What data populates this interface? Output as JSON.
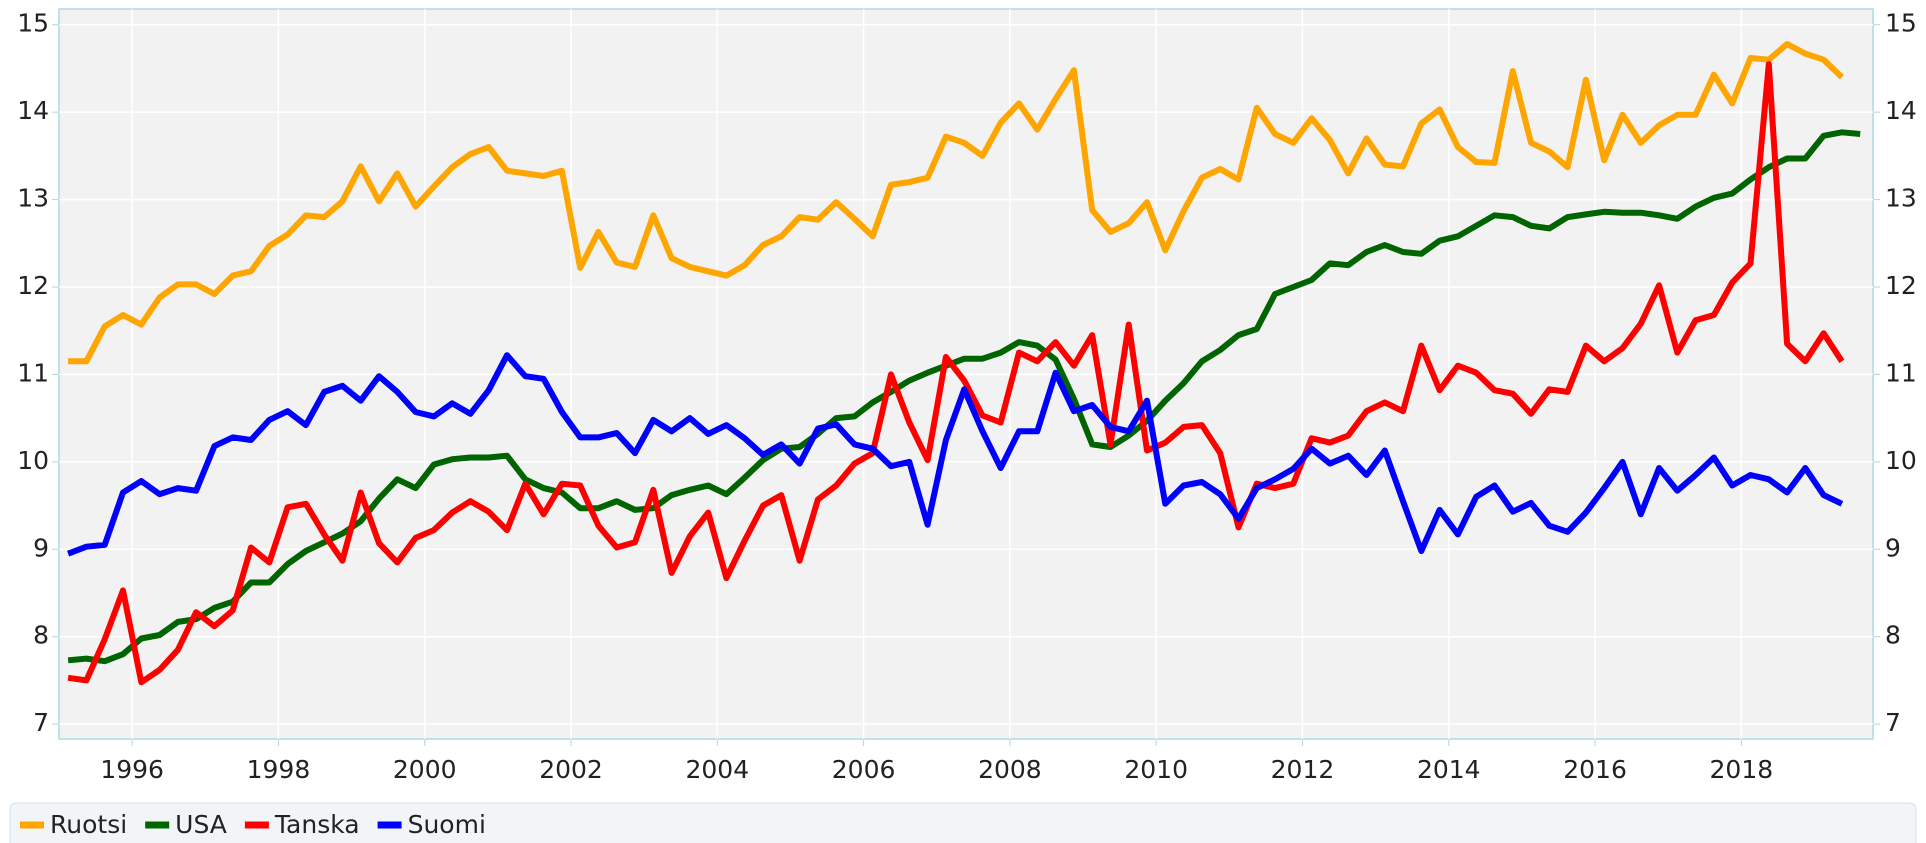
{
  "chart_data": {
    "type": "line",
    "x": [
      1995.125,
      1995.375,
      1995.625,
      1995.875,
      1996.125,
      1996.375,
      1996.625,
      1996.875,
      1997.125,
      1997.375,
      1997.625,
      1997.875,
      1998.125,
      1998.375,
      1998.625,
      1998.875,
      1999.125,
      1999.375,
      1999.625,
      1999.875,
      2000.125,
      2000.375,
      2000.625,
      2000.875,
      2001.125,
      2001.375,
      2001.625,
      2001.875,
      2002.125,
      2002.375,
      2002.625,
      2002.875,
      2003.125,
      2003.375,
      2003.625,
      2003.875,
      2004.125,
      2004.375,
      2004.625,
      2004.875,
      2005.125,
      2005.375,
      2005.625,
      2005.875,
      2006.125,
      2006.375,
      2006.625,
      2006.875,
      2007.125,
      2007.375,
      2007.625,
      2007.875,
      2008.125,
      2008.375,
      2008.625,
      2008.875,
      2009.125,
      2009.375,
      2009.625,
      2009.875,
      2010.125,
      2010.375,
      2010.625,
      2010.875,
      2011.125,
      2011.375,
      2011.625,
      2011.875,
      2012.125,
      2012.375,
      2012.625,
      2012.875,
      2013.125,
      2013.375,
      2013.625,
      2013.875,
      2014.125,
      2014.375,
      2014.625,
      2014.875,
      2015.125,
      2015.375,
      2015.625,
      2015.875,
      2016.125,
      2016.375,
      2016.625,
      2016.875,
      2017.125,
      2017.375,
      2017.625,
      2017.875,
      2018.125,
      2018.375,
      2018.625,
      2018.875,
      2019.125,
      2019.375,
      2019.625
    ],
    "series": [
      {
        "name": "Ruotsi",
        "color": "#ffa500",
        "values": [
          11.15,
          11.15,
          11.55,
          11.68,
          11.57,
          11.88,
          12.03,
          12.03,
          11.92,
          12.13,
          12.18,
          12.47,
          12.6,
          12.82,
          12.8,
          12.98,
          13.38,
          12.98,
          13.3,
          12.92,
          13.15,
          13.37,
          13.52,
          13.6,
          13.33,
          13.3,
          13.27,
          13.33,
          12.22,
          12.63,
          12.28,
          12.23,
          12.82,
          12.33,
          12.23,
          12.18,
          12.13,
          12.25,
          12.48,
          12.58,
          12.8,
          12.77,
          12.97,
          12.78,
          12.58,
          13.17,
          13.2,
          13.25,
          13.72,
          13.65,
          13.5,
          13.88,
          14.1,
          13.8,
          14.15,
          14.48,
          12.88,
          12.63,
          12.73,
          12.97,
          12.42,
          12.87,
          13.25,
          13.35,
          13.23,
          14.05,
          13.75,
          13.65,
          13.93,
          13.68,
          13.3,
          13.7,
          13.4,
          13.38,
          13.87,
          14.03,
          13.6,
          13.43,
          13.42,
          14.47,
          13.65,
          13.55,
          13.37,
          14.37,
          13.45,
          13.97,
          13.65,
          13.85,
          13.97,
          13.97,
          14.43,
          14.1,
          14.62,
          14.6,
          14.78,
          14.67,
          14.6,
          14.4,
          null
        ]
      },
      {
        "name": "USA",
        "color": "#006400",
        "values": [
          7.73,
          7.75,
          7.72,
          7.8,
          7.98,
          8.02,
          8.17,
          8.2,
          8.33,
          8.4,
          8.62,
          8.62,
          8.83,
          8.98,
          9.08,
          9.18,
          9.32,
          9.58,
          9.8,
          9.7,
          9.97,
          10.03,
          10.05,
          10.05,
          10.07,
          9.8,
          9.7,
          9.65,
          9.47,
          9.47,
          9.55,
          9.45,
          9.47,
          9.62,
          9.68,
          9.73,
          9.63,
          9.82,
          10.02,
          10.15,
          10.17,
          10.32,
          10.5,
          10.52,
          10.68,
          10.8,
          10.93,
          11.02,
          11.1,
          11.18,
          11.18,
          11.25,
          11.37,
          11.33,
          11.17,
          10.72,
          10.2,
          10.17,
          10.3,
          10.47,
          10.7,
          10.9,
          11.15,
          11.28,
          11.45,
          11.52,
          11.92,
          12.0,
          12.08,
          12.27,
          12.25,
          12.4,
          12.48,
          12.4,
          12.38,
          12.53,
          12.58,
          12.7,
          12.82,
          12.8,
          12.7,
          12.67,
          12.8,
          12.83,
          12.86,
          12.85,
          12.85,
          12.82,
          12.78,
          12.92,
          13.02,
          13.07,
          13.23,
          13.37,
          13.47,
          13.47,
          13.73,
          13.77,
          13.75
        ]
      },
      {
        "name": "Tanska",
        "color": "#ff0000",
        "values": [
          7.53,
          7.5,
          7.97,
          8.53,
          7.48,
          7.62,
          7.85,
          8.28,
          8.12,
          8.3,
          9.02,
          8.85,
          9.48,
          9.52,
          9.17,
          8.87,
          9.65,
          9.07,
          8.85,
          9.13,
          9.22,
          9.42,
          9.55,
          9.43,
          9.22,
          9.75,
          9.4,
          9.75,
          9.73,
          9.27,
          9.02,
          9.08,
          9.68,
          8.73,
          9.15,
          9.42,
          8.67,
          9.1,
          9.5,
          9.62,
          8.87,
          9.57,
          9.73,
          9.98,
          10.1,
          11.0,
          10.45,
          10.02,
          11.2,
          10.93,
          10.53,
          10.45,
          11.25,
          11.15,
          11.37,
          11.1,
          11.45,
          10.2,
          11.57,
          10.13,
          10.22,
          10.4,
          10.42,
          10.1,
          9.25,
          9.75,
          9.7,
          9.75,
          10.27,
          10.22,
          10.3,
          10.58,
          10.68,
          10.58,
          11.33,
          10.82,
          11.1,
          11.02,
          10.82,
          10.78,
          10.55,
          10.83,
          10.8,
          11.33,
          11.15,
          11.3,
          11.58,
          12.02,
          11.25,
          11.62,
          11.68,
          12.05,
          12.27,
          14.55,
          11.35,
          11.15,
          11.47,
          11.15,
          null
        ]
      },
      {
        "name": "Suomi",
        "color": "#0000ff",
        "values": [
          8.95,
          9.03,
          9.05,
          9.65,
          9.78,
          9.63,
          9.7,
          9.67,
          10.18,
          10.28,
          10.25,
          10.48,
          10.58,
          10.42,
          10.8,
          10.87,
          10.7,
          10.98,
          10.8,
          10.57,
          10.52,
          10.67,
          10.55,
          10.82,
          11.22,
          10.98,
          10.95,
          10.57,
          10.28,
          10.28,
          10.33,
          10.1,
          10.48,
          10.35,
          10.5,
          10.32,
          10.42,
          10.27,
          10.08,
          10.2,
          9.98,
          10.38,
          10.43,
          10.2,
          10.15,
          9.95,
          10.0,
          9.28,
          10.25,
          10.83,
          10.35,
          9.93,
          10.35,
          10.35,
          11.02,
          10.58,
          10.65,
          10.4,
          10.35,
          10.7,
          9.52,
          9.73,
          9.77,
          9.63,
          9.35,
          9.7,
          9.8,
          9.92,
          10.15,
          9.98,
          10.07,
          9.85,
          10.13,
          9.55,
          8.98,
          9.45,
          9.17,
          9.6,
          9.73,
          9.43,
          9.53,
          9.27,
          9.2,
          9.42,
          9.7,
          10.0,
          9.4,
          9.93,
          9.67,
          9.85,
          10.05,
          9.73,
          9.85,
          9.8,
          9.65,
          9.93,
          9.62,
          9.52,
          null
        ]
      }
    ],
    "xlim": [
      1995,
      2019.8
    ],
    "xticks": [
      1996,
      1998,
      2000,
      2002,
      2004,
      2006,
      2008,
      2010,
      2012,
      2014,
      2016,
      2018
    ],
    "ylim": [
      6.83,
      15.18
    ],
    "yticks": [
      7,
      8,
      9,
      10,
      11,
      12,
      13,
      14,
      15
    ],
    "grid": true,
    "legend": "bottom"
  }
}
